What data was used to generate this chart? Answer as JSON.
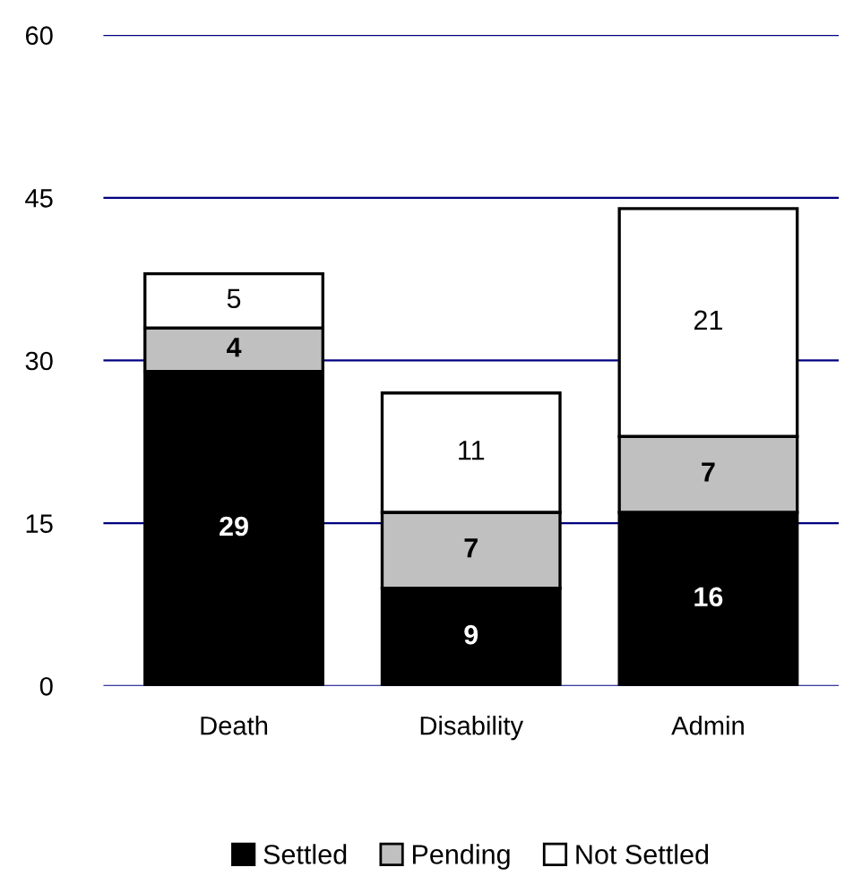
{
  "chart_data": {
    "type": "bar",
    "stacked": true,
    "categories": [
      "Death",
      "Disability",
      "Admin"
    ],
    "series": [
      {
        "name": "Settled",
        "color": "#000000",
        "values": [
          29,
          9,
          16
        ]
      },
      {
        "name": "Pending",
        "color": "#c0c0c0",
        "values": [
          4,
          7,
          7
        ]
      },
      {
        "name": "Not Settled",
        "color": "#ffffff",
        "values": [
          5,
          11,
          21
        ]
      }
    ],
    "ylim": [
      0,
      60
    ],
    "yticks": [
      0,
      15,
      30,
      45,
      60
    ],
    "grid": "y",
    "legend": "bottom",
    "data_labels": true
  }
}
